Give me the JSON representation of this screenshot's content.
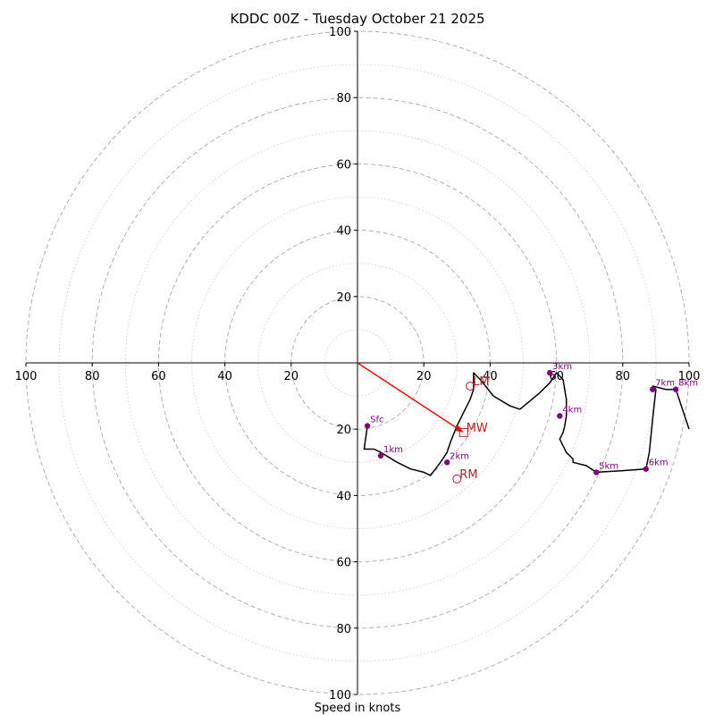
{
  "chart_data": {
    "type": "hodograph",
    "title": "KDDC 00Z - Tuesday October 21 2025",
    "xlabel": "Speed in knots",
    "axis_range": [
      -100,
      100
    ],
    "major_rings": [
      20,
      40,
      60,
      80,
      100
    ],
    "minor_rings": [
      10,
      30,
      50,
      70,
      90
    ],
    "x_ticks": [
      "100",
      "80",
      "60",
      "40",
      "20",
      "20",
      "40",
      "60",
      "80",
      "100"
    ],
    "y_ticks": [
      "100",
      "80",
      "60",
      "40",
      "20",
      "20",
      "40",
      "60",
      "80",
      "100"
    ],
    "profile": {
      "u": [
        3,
        2,
        2,
        5,
        7,
        12,
        16,
        20,
        22,
        25,
        27,
        28,
        30,
        32,
        34,
        35,
        35,
        37,
        41,
        46,
        49,
        55,
        58,
        60,
        62,
        63,
        63,
        62.5,
        62,
        61,
        62,
        63,
        65,
        65,
        69,
        72,
        80,
        87,
        88,
        89,
        90,
        89,
        93,
        96,
        100
      ],
      "v": [
        -19,
        -26,
        -26,
        -26,
        -27,
        -30,
        -32,
        -33,
        -34,
        -30,
        -27,
        -24,
        -19,
        -15,
        -11,
        -8,
        -3,
        -5,
        -10,
        -13,
        -14,
        -9,
        -6,
        -3,
        -5,
        -11,
        -16,
        -19,
        -21,
        -23,
        -25,
        -27,
        -29,
        -30,
        -31,
        -33,
        -32.5,
        -32,
        -27,
        -17,
        -8,
        -7,
        -8,
        -8,
        -20
      ]
    },
    "height_markers": [
      {
        "label": "Sfc",
        "u": 3,
        "v": -19
      },
      {
        "label": "1km",
        "u": 7,
        "v": -28
      },
      {
        "label": "2km",
        "u": 27,
        "v": -30
      },
      {
        "label": "3km",
        "u": 58,
        "v": -3
      },
      {
        "label": "4km",
        "u": 61,
        "v": -16
      },
      {
        "label": "5km",
        "u": 72,
        "v": -33
      },
      {
        "label": "6km",
        "u": 87,
        "v": -32
      },
      {
        "label": "7km",
        "u": 89,
        "v": -8
      },
      {
        "label": "8km",
        "u": 96,
        "v": -8
      }
    ],
    "storm_motions": [
      {
        "label": "LM",
        "u": 34,
        "v": -7,
        "marker": "circle"
      },
      {
        "label": "MW",
        "u": 32,
        "v": -21,
        "marker": "square"
      },
      {
        "label": "RM",
        "u": 30,
        "v": -35,
        "marker": "circle"
      }
    ],
    "mean_wind_vector": {
      "u": 32,
      "v": -21
    },
    "colors": {
      "profile": "#000000",
      "height_marker": "#800080",
      "storm_motion": "#b22222",
      "vector": "#ff0000",
      "major_grid": "#b0b0b0",
      "minor_grid": "#d3d3d3"
    }
  }
}
